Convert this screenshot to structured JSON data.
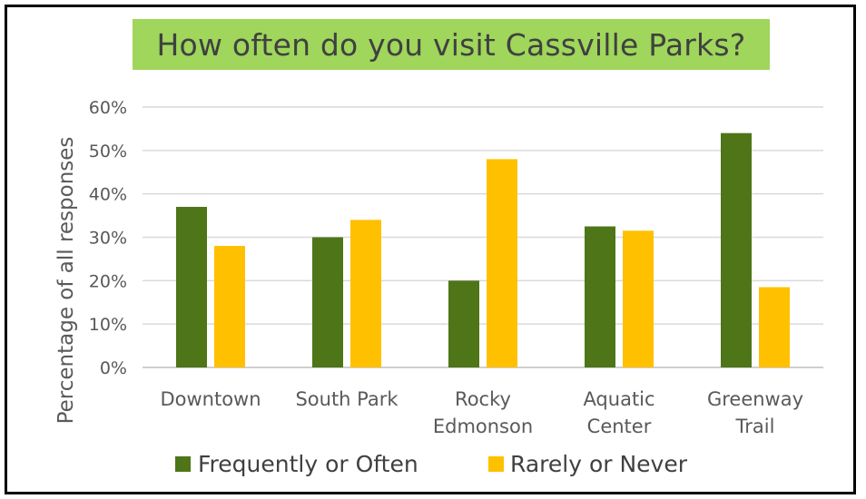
{
  "chart_data": {
    "type": "bar",
    "title": "How often do you visit Cassville Parks?",
    "ylabel": "Percentage of all responses",
    "xlabel": "",
    "ylim": [
      0,
      0.6
    ],
    "y_ticks": [
      "0%",
      "10%",
      "20%",
      "30%",
      "40%",
      "50%",
      "60%"
    ],
    "categories": [
      [
        "Downtown"
      ],
      [
        "South Park"
      ],
      [
        "Rocky",
        "Edmonson"
      ],
      [
        "Aquatic",
        "Center"
      ],
      [
        "Greenway",
        "Trail"
      ]
    ],
    "series": [
      {
        "name": "Frequently or Often",
        "color": "#4e7518",
        "values": [
          0.37,
          0.3,
          0.2,
          0.325,
          0.54
        ]
      },
      {
        "name": "Rarely or Never",
        "color": "#ffc000",
        "values": [
          0.28,
          0.34,
          0.48,
          0.315,
          0.185
        ]
      }
    ],
    "grid": true,
    "legend_position": "bottom"
  },
  "colors": {
    "title_background": "#9fd65b",
    "gridline": "#d9d9d9",
    "text": "#595959"
  }
}
